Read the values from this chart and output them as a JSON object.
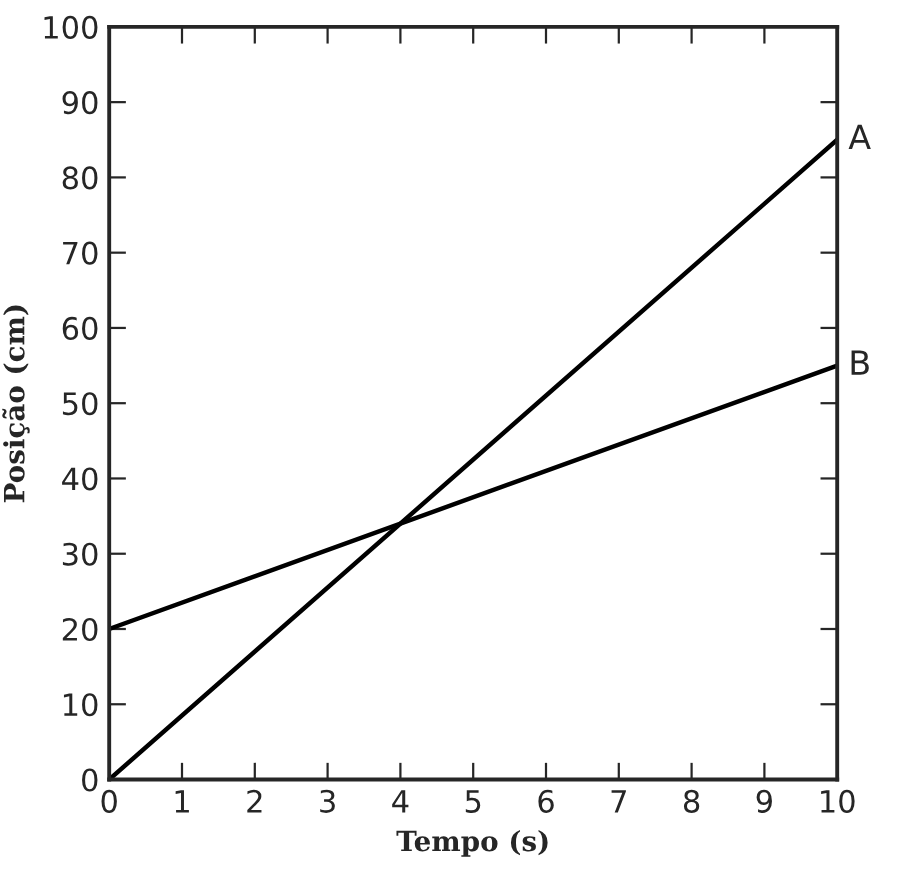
{
  "chart_data": {
    "type": "line",
    "xlabel": "Tempo (s)",
    "ylabel": "Posição (cm)",
    "x": [
      0,
      10
    ],
    "series": [
      {
        "name": "A",
        "color": "#000000",
        "values": [
          0,
          85
        ]
      },
      {
        "name": "B",
        "color": "#000000",
        "values": [
          20,
          55
        ]
      }
    ],
    "xlim": [
      0,
      10
    ],
    "ylim": [
      0,
      100
    ],
    "xticks": [
      0,
      1,
      2,
      3,
      4,
      5,
      6,
      7,
      8,
      9,
      10
    ],
    "yticks": [
      0,
      10,
      20,
      30,
      40,
      50,
      60,
      70,
      80,
      90,
      100
    ],
    "grid": false,
    "legend": false,
    "marker": "none",
    "line_style": "solid"
  }
}
